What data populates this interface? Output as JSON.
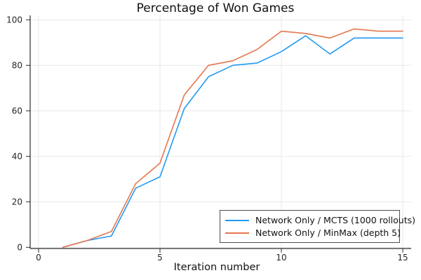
{
  "chart_data": {
    "type": "line",
    "title": "Percentage of Won Games",
    "xlabel": "Iteration number",
    "ylabel": "",
    "xticks": [
      0,
      5,
      10,
      15
    ],
    "yticks": [
      0,
      20,
      40,
      60,
      80,
      100
    ],
    "xlim": [
      -0.35,
      15.35
    ],
    "ylim": [
      -0.6,
      102
    ],
    "grid": true,
    "legend_position": "bottom-right",
    "x": [
      1,
      2,
      3,
      4,
      5,
      6,
      7,
      8,
      9,
      10,
      11,
      12,
      13,
      14,
      15
    ],
    "series": [
      {
        "name": "Network Only / MCTS (1000 rollouts)",
        "color": "#219af2",
        "values": [
          0,
          3,
          5,
          26,
          31,
          61,
          75,
          80,
          81,
          86,
          93,
          85,
          92,
          92,
          92
        ]
      },
      {
        "name": "Network Only / MinMax (depth 5)",
        "color": "#e5764e",
        "values": [
          0,
          3,
          7,
          28,
          37,
          67,
          80,
          82,
          87,
          95,
          94,
          92,
          96,
          95,
          95
        ]
      }
    ]
  },
  "style": {
    "spine_color": "#2b2b2b",
    "tick_color": "#2b2b2b",
    "grid_color": "#e9e9e9",
    "tick_label_color": "#262626",
    "background": "#ffffff"
  }
}
